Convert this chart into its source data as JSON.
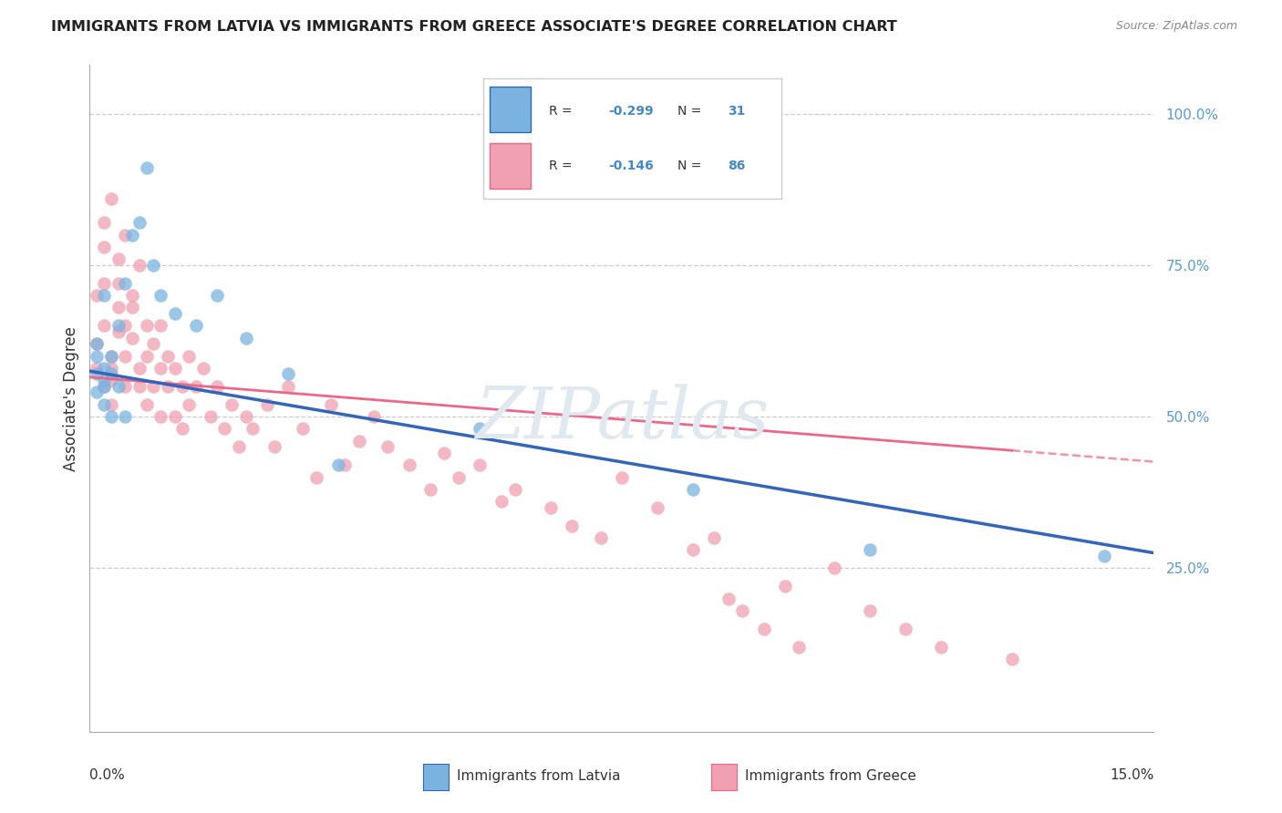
{
  "title": "IMMIGRANTS FROM LATVIA VS IMMIGRANTS FROM GREECE ASSOCIATE'S DEGREE CORRELATION CHART",
  "source": "Source: ZipAtlas.com",
  "ylabel": "Associate's Degree",
  "x_range": [
    0.0,
    0.15
  ],
  "y_range": [
    -0.02,
    1.08
  ],
  "color_latvia": "#7ab3e0",
  "color_greece": "#f0a0b0",
  "color_latvia_line": "#3366bb",
  "color_greece_line": "#ee6688",
  "watermark": "ZIPatlas",
  "latvia_x": [
    0.001,
    0.001,
    0.001,
    0.001,
    0.002,
    0.002,
    0.002,
    0.002,
    0.002,
    0.003,
    0.003,
    0.003,
    0.004,
    0.004,
    0.005,
    0.005,
    0.006,
    0.007,
    0.008,
    0.009,
    0.01,
    0.012,
    0.015,
    0.018,
    0.022,
    0.028,
    0.035,
    0.055,
    0.085,
    0.11,
    0.143
  ],
  "latvia_y": [
    0.57,
    0.54,
    0.62,
    0.6,
    0.7,
    0.56,
    0.55,
    0.58,
    0.52,
    0.57,
    0.6,
    0.5,
    0.65,
    0.55,
    0.72,
    0.5,
    0.8,
    0.82,
    0.91,
    0.75,
    0.7,
    0.67,
    0.65,
    0.7,
    0.63,
    0.57,
    0.42,
    0.48,
    0.38,
    0.28,
    0.27
  ],
  "greece_x": [
    0.001,
    0.001,
    0.001,
    0.002,
    0.002,
    0.002,
    0.002,
    0.002,
    0.003,
    0.003,
    0.003,
    0.003,
    0.003,
    0.004,
    0.004,
    0.004,
    0.004,
    0.005,
    0.005,
    0.005,
    0.005,
    0.006,
    0.006,
    0.006,
    0.007,
    0.007,
    0.007,
    0.008,
    0.008,
    0.008,
    0.009,
    0.009,
    0.01,
    0.01,
    0.01,
    0.011,
    0.011,
    0.012,
    0.012,
    0.013,
    0.013,
    0.014,
    0.014,
    0.015,
    0.016,
    0.017,
    0.018,
    0.019,
    0.02,
    0.021,
    0.022,
    0.023,
    0.025,
    0.026,
    0.028,
    0.03,
    0.032,
    0.034,
    0.036,
    0.038,
    0.04,
    0.042,
    0.045,
    0.048,
    0.05,
    0.052,
    0.055,
    0.058,
    0.06,
    0.065,
    0.068,
    0.072,
    0.075,
    0.08,
    0.085,
    0.088,
    0.09,
    0.092,
    0.095,
    0.098,
    0.1,
    0.105,
    0.11,
    0.115,
    0.12,
    0.13
  ],
  "greece_y": [
    0.62,
    0.58,
    0.7,
    0.65,
    0.78,
    0.55,
    0.72,
    0.82,
    0.58,
    0.86,
    0.56,
    0.6,
    0.52,
    0.76,
    0.64,
    0.72,
    0.68,
    0.8,
    0.65,
    0.55,
    0.6,
    0.7,
    0.63,
    0.68,
    0.75,
    0.58,
    0.55,
    0.65,
    0.6,
    0.52,
    0.55,
    0.62,
    0.65,
    0.58,
    0.5,
    0.6,
    0.55,
    0.58,
    0.5,
    0.55,
    0.48,
    0.52,
    0.6,
    0.55,
    0.58,
    0.5,
    0.55,
    0.48,
    0.52,
    0.45,
    0.5,
    0.48,
    0.52,
    0.45,
    0.55,
    0.48,
    0.4,
    0.52,
    0.42,
    0.46,
    0.5,
    0.45,
    0.42,
    0.38,
    0.44,
    0.4,
    0.42,
    0.36,
    0.38,
    0.35,
    0.32,
    0.3,
    0.4,
    0.35,
    0.28,
    0.3,
    0.2,
    0.18,
    0.15,
    0.22,
    0.12,
    0.25,
    0.18,
    0.15,
    0.12,
    0.1
  ]
}
